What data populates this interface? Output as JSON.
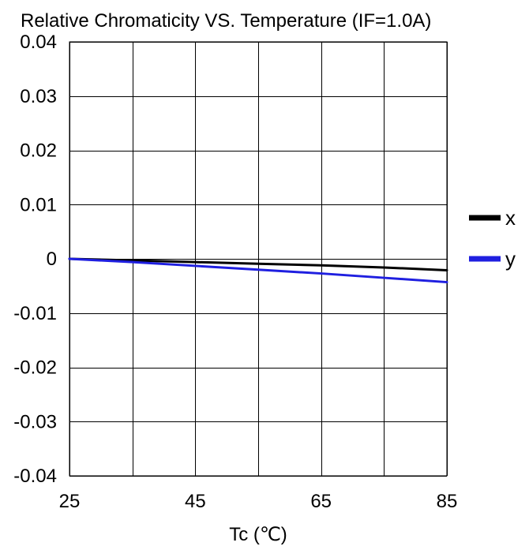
{
  "chart_data": {
    "type": "line",
    "title": "Relative Chromaticity VS. Temperature (IF=1.0A)",
    "xlabel": "Tc (℃)",
    "ylabel": "",
    "xlim": [
      25,
      85
    ],
    "ylim": [
      -0.04,
      0.04
    ],
    "x_ticks": [
      25,
      45,
      65,
      85
    ],
    "x_tick_labels": [
      "25",
      "45",
      "65",
      "85"
    ],
    "x_gridlines": [
      25,
      35,
      45,
      55,
      65,
      75,
      85
    ],
    "y_ticks": [
      0.04,
      0.03,
      0.02,
      0.01,
      0,
      -0.01,
      -0.02,
      -0.03,
      -0.04
    ],
    "y_tick_labels": [
      "0.04",
      "0.03",
      "0.02",
      "0.01",
      "0",
      "-0.01",
      "-0.02",
      "-0.03",
      "-0.04"
    ],
    "grid": true,
    "legend_position": "right",
    "series": [
      {
        "name": "x",
        "color": "#000000",
        "x": [
          25,
          35,
          45,
          55,
          65,
          75,
          85
        ],
        "y": [
          0,
          -0.0003,
          -0.0006,
          -0.0009,
          -0.0012,
          -0.0016,
          -0.0021
        ]
      },
      {
        "name": "y",
        "color": "#1f1fe0",
        "x": [
          25,
          35,
          45,
          55,
          65,
          75,
          85
        ],
        "y": [
          0,
          -0.0006,
          -0.0013,
          -0.002,
          -0.0027,
          -0.0035,
          -0.0043
        ]
      }
    ]
  }
}
